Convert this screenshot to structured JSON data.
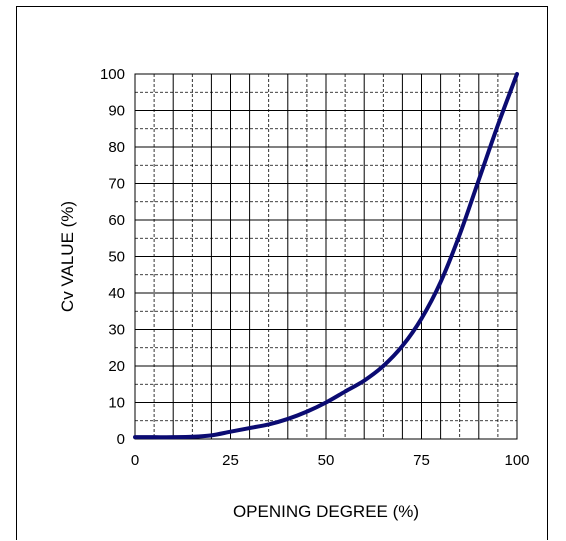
{
  "chart_data": {
    "type": "line",
    "title": "",
    "xlabel": "OPENING DEGREE (%)",
    "ylabel": "Cv VALUE (%)",
    "xlim": [
      0,
      100
    ],
    "ylim": [
      0,
      100
    ],
    "x_ticks": [
      0,
      25,
      50,
      75,
      100
    ],
    "y_ticks": [
      0,
      10,
      20,
      30,
      40,
      50,
      60,
      70,
      80,
      90,
      100
    ],
    "grid": "major solid, minor dashed",
    "line_color": "#0b0b72",
    "series": [
      {
        "values": [
          [
            0,
            0.5
          ],
          [
            5,
            0.5
          ],
          [
            10,
            0.5
          ],
          [
            15,
            0.6
          ],
          [
            20,
            1.0
          ],
          [
            25,
            2.0
          ],
          [
            30,
            3.0
          ],
          [
            35,
            4.0
          ],
          [
            40,
            5.5
          ],
          [
            45,
            7.5
          ],
          [
            50,
            10.0
          ],
          [
            55,
            13.0
          ],
          [
            60,
            16.0
          ],
          [
            65,
            20.0
          ],
          [
            70,
            25.5
          ],
          [
            75,
            33.0
          ],
          [
            80,
            43.0
          ],
          [
            85,
            56.0
          ],
          [
            90,
            71.0
          ],
          [
            95,
            86.0
          ],
          [
            100,
            100.0
          ]
        ]
      }
    ]
  }
}
